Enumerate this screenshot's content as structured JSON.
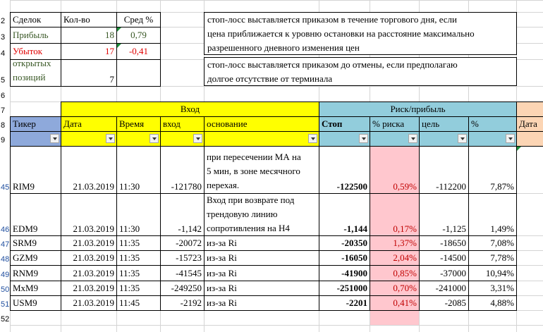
{
  "summary": {
    "h_deals": "Сделок",
    "h_count": "Кол-во",
    "h_avg": "Сред %",
    "profit_label": "Прибыль",
    "profit_count": "18",
    "profit_avg": "0,79",
    "loss_label": "Убыток",
    "loss_count": "17",
    "loss_avg": "-0,41",
    "open_label_1": "открытых",
    "open_label_2": "позиций",
    "open_count": "7"
  },
  "notes": {
    "note1_line1": "стоп-лосс выставляется приказом в течение торгового дня, если",
    "note1_line2": "цена приближается к уровню остановки на расстояние максимально",
    "note1_line3": "разрешенного дневного изменения цен",
    "note2_line1": "стоп-лосс выставляется приказом до отмены, если предполагаю",
    "note2_line2": "долгое отсутствие от терминала"
  },
  "groups": {
    "entry": "Вход",
    "risk": "Риск/прибыль"
  },
  "columns": {
    "ticker": "Тикер",
    "date": "Дата",
    "time": "Время",
    "entry": "вход",
    "reason": "основание",
    "stop": "Стоп",
    "risk_pct": "% риска",
    "target": "цель",
    "pct": "%",
    "date2": "Дата"
  },
  "row_headers": [
    "2",
    "3",
    "4",
    "5",
    "6",
    "7",
    "8",
    "9",
    "45",
    "46",
    "47",
    "48",
    "49",
    "50",
    "51",
    "52"
  ],
  "rows": [
    {
      "rownum": "45",
      "ticker": "RIM9",
      "date": "21.03.2019",
      "time": "11:30",
      "entry": "-121780",
      "reason_lines": [
        "при пересечении МА на",
        "5 мин, в зоне месячного",
        "перехая."
      ],
      "stop": "-122500",
      "risk_pct": "0,59%",
      "target": "-112200",
      "pct": "7,87%"
    },
    {
      "rownum": "46",
      "ticker": "EDM9",
      "date": "21.03.2019",
      "time": "11:30",
      "entry": "-1,142",
      "reason_lines": [
        "Вход при возврате под",
        "трендовую линию",
        "сопротивления на H4"
      ],
      "stop": "-1,144",
      "risk_pct": "0,17%",
      "target": "-1,125",
      "pct": "1,49%"
    },
    {
      "rownum": "47",
      "ticker": "SRM9",
      "date": "21.03.2019",
      "time": "11:35",
      "entry": "-20072",
      "reason": "из-за Ri",
      "stop": "-20350",
      "risk_pct": "1,37%",
      "target": "-18650",
      "pct": "7,08%"
    },
    {
      "rownum": "48",
      "ticker": "GZM9",
      "date": "21.03.2019",
      "time": "11:35",
      "entry": "-15723",
      "reason": "из-за Ri",
      "stop": "-16050",
      "risk_pct": "2,04%",
      "target": "-14500",
      "pct": "7,78%"
    },
    {
      "rownum": "49",
      "ticker": "RNM9",
      "date": "21.03.2019",
      "time": "11:35",
      "entry": "-41545",
      "reason": "из-за Ri",
      "stop": "-41900",
      "risk_pct": "0,85%",
      "target": "-37000",
      "pct": "10,94%"
    },
    {
      "rownum": "50",
      "ticker": "MxM9",
      "date": "21.03.2019",
      "time": "11:35",
      "entry": "-249250",
      "reason": "из-за Ri",
      "stop": "-251000",
      "risk_pct": "0,70%",
      "target": "-241000",
      "pct": "3,31%"
    },
    {
      "rownum": "51",
      "ticker": "USM9",
      "date": "21.03.2019",
      "time": "11:45",
      "entry": "-2192",
      "reason": "из-за Ri",
      "stop": "-2201",
      "risk_pct": "0,41%",
      "target": "-2085",
      "pct": "4,88%"
    }
  ],
  "colors": {
    "yellow": "#ffff00",
    "teal": "#92cddc",
    "blue": "#8ea9db",
    "pink": "#ffc7ce",
    "peach": "#fcd5b4",
    "profit_text": "#375623",
    "loss_text": "#e00000"
  }
}
